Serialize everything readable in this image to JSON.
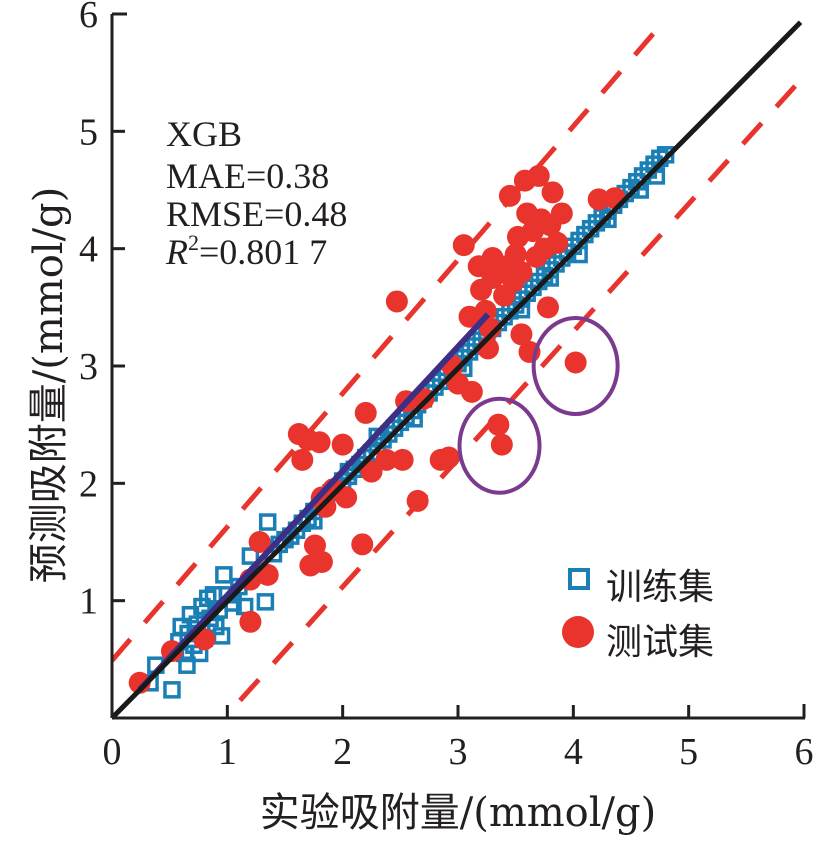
{
  "chart_data": {
    "type": "scatter",
    "title": "",
    "xlabel": "实验吸附量/(mmol/g)",
    "ylabel": "预测吸附量/(mmol/g)",
    "xlim": [
      0,
      6
    ],
    "ylim": [
      0,
      6
    ],
    "xticks": [
      0,
      1,
      2,
      3,
      4,
      5,
      6
    ],
    "yticks": [
      1,
      2,
      3,
      4,
      5,
      6
    ],
    "xtick_labels": [
      "0",
      "1",
      "2",
      "3",
      "4",
      "5",
      "6"
    ],
    "ytick_labels": [
      "1",
      "2",
      "3",
      "4",
      "5",
      "6"
    ],
    "grid": false,
    "legend_position": "bottom-right",
    "annotation": {
      "model": "XGB",
      "mae": "MAE=0.38",
      "rmse": "RMSE=0.48",
      "r2_symbol": "R",
      "r2_sup": "2",
      "r2_value": "=0.801 7"
    },
    "colors": {
      "train": "#1a7fb5",
      "test": "#e8342c",
      "identity_line": "#1a1a1a",
      "fit_line": "#3d2f86",
      "bound_lines": "#e8342c",
      "highlight_ellipse": "#7a3b8f",
      "axis": "#231f20"
    },
    "series": [
      {
        "name": "训练集",
        "marker": "square-open",
        "points": [
          [
            0.33,
            0.3
          ],
          [
            0.38,
            0.45
          ],
          [
            0.52,
            0.24
          ],
          [
            0.55,
            0.57
          ],
          [
            0.58,
            0.65
          ],
          [
            0.6,
            0.78
          ],
          [
            0.63,
            0.55
          ],
          [
            0.65,
            0.45
          ],
          [
            0.66,
            0.72
          ],
          [
            0.68,
            0.88
          ],
          [
            0.71,
            0.62
          ],
          [
            0.74,
            0.8
          ],
          [
            0.76,
            0.55
          ],
          [
            0.78,
            0.95
          ],
          [
            0.8,
            0.68
          ],
          [
            0.83,
            1.02
          ],
          [
            0.85,
            0.85
          ],
          [
            0.88,
            1.05
          ],
          [
            0.9,
            0.78
          ],
          [
            0.93,
            0.92
          ],
          [
            0.95,
            0.7
          ],
          [
            0.97,
            1.22
          ],
          [
            1.0,
            1.05
          ],
          [
            1.05,
            0.98
          ],
          [
            1.1,
            1.12
          ],
          [
            1.15,
            0.95
          ],
          [
            1.2,
            1.38
          ],
          [
            1.27,
            1.22
          ],
          [
            1.33,
            0.99
          ],
          [
            1.35,
            1.67
          ],
          [
            1.4,
            1.4
          ],
          [
            1.45,
            1.48
          ],
          [
            1.5,
            1.52
          ],
          [
            1.55,
            1.55
          ],
          [
            1.6,
            1.6
          ],
          [
            1.65,
            1.66
          ],
          [
            1.7,
            1.7
          ],
          [
            1.75,
            1.76
          ],
          [
            1.8,
            1.82
          ],
          [
            1.85,
            1.86
          ],
          [
            1.9,
            1.92
          ],
          [
            1.95,
            1.96
          ],
          [
            2.0,
            2.02
          ],
          [
            2.05,
            2.06
          ],
          [
            2.1,
            2.12
          ],
          [
            2.15,
            2.16
          ],
          [
            2.2,
            2.22
          ],
          [
            2.25,
            2.26
          ],
          [
            2.3,
            2.32
          ],
          [
            2.35,
            2.37
          ],
          [
            2.4,
            2.42
          ],
          [
            2.45,
            2.47
          ],
          [
            2.5,
            2.52
          ],
          [
            2.55,
            2.57
          ],
          [
            2.6,
            2.62
          ],
          [
            2.65,
            2.67
          ],
          [
            2.7,
            2.72
          ],
          [
            2.75,
            2.77
          ],
          [
            2.8,
            2.82
          ],
          [
            2.85,
            2.87
          ],
          [
            2.9,
            2.92
          ],
          [
            2.95,
            2.97
          ],
          [
            3.0,
            3.02
          ],
          [
            3.05,
            3.07
          ],
          [
            3.1,
            3.12
          ],
          [
            3.15,
            3.17
          ],
          [
            3.2,
            3.22
          ],
          [
            3.25,
            3.27
          ],
          [
            3.3,
            3.32
          ],
          [
            3.35,
            3.37
          ],
          [
            3.4,
            3.42
          ],
          [
            3.45,
            3.47
          ],
          [
            3.5,
            3.52
          ],
          [
            3.55,
            3.57
          ],
          [
            3.6,
            3.62
          ],
          [
            3.65,
            3.67
          ],
          [
            3.7,
            3.72
          ],
          [
            3.75,
            3.77
          ],
          [
            3.8,
            3.82
          ],
          [
            3.85,
            3.87
          ],
          [
            3.9,
            3.92
          ],
          [
            3.95,
            3.97
          ],
          [
            4.0,
            4.02
          ],
          [
            4.05,
            4.07
          ],
          [
            4.1,
            4.12
          ],
          [
            4.15,
            4.17
          ],
          [
            4.2,
            4.22
          ],
          [
            4.25,
            4.27
          ],
          [
            4.3,
            4.32
          ],
          [
            4.35,
            4.37
          ],
          [
            4.4,
            4.42
          ],
          [
            4.45,
            4.47
          ],
          [
            4.5,
            4.52
          ],
          [
            4.55,
            4.57
          ],
          [
            4.6,
            4.62
          ],
          [
            4.65,
            4.67
          ],
          [
            4.7,
            4.72
          ],
          [
            4.75,
            4.77
          ],
          [
            4.8,
            4.8
          ],
          [
            4.58,
            4.5
          ],
          [
            4.72,
            4.62
          ],
          [
            2.3,
            2.4
          ],
          [
            2.62,
            2.55
          ],
          [
            3.05,
            2.98
          ],
          [
            3.55,
            3.48
          ],
          [
            4.05,
            3.95
          ],
          [
            1.75,
            1.68
          ],
          [
            2.05,
            2.1
          ],
          [
            3.8,
            3.75
          ],
          [
            4.3,
            4.25
          ]
        ]
      },
      {
        "name": "测试集",
        "marker": "circle-filled",
        "points": [
          [
            0.24,
            0.3
          ],
          [
            0.52,
            0.57
          ],
          [
            0.8,
            0.67
          ],
          [
            1.2,
            0.82
          ],
          [
            1.2,
            1.18
          ],
          [
            1.28,
            1.5
          ],
          [
            1.35,
            1.22
          ],
          [
            1.62,
            2.42
          ],
          [
            1.7,
            2.37
          ],
          [
            1.65,
            2.2
          ],
          [
            1.8,
            2.35
          ],
          [
            1.72,
            1.3
          ],
          [
            1.76,
            1.47
          ],
          [
            1.82,
            1.33
          ],
          [
            1.82,
            1.88
          ],
          [
            1.85,
            1.8
          ],
          [
            1.92,
            1.95
          ],
          [
            2.0,
            2.33
          ],
          [
            2.03,
            1.88
          ],
          [
            2.17,
            1.48
          ],
          [
            2.2,
            2.6
          ],
          [
            2.25,
            2.1
          ],
          [
            2.38,
            2.2
          ],
          [
            2.47,
            3.55
          ],
          [
            2.52,
            2.2
          ],
          [
            2.55,
            2.7
          ],
          [
            2.65,
            1.85
          ],
          [
            2.7,
            2.72
          ],
          [
            2.85,
            2.2
          ],
          [
            2.92,
            2.22
          ],
          [
            2.95,
            3.0
          ],
          [
            3.0,
            2.85
          ],
          [
            3.05,
            4.03
          ],
          [
            3.1,
            3.42
          ],
          [
            3.12,
            2.78
          ],
          [
            3.18,
            3.85
          ],
          [
            3.2,
            3.65
          ],
          [
            3.24,
            3.47
          ],
          [
            3.26,
            3.15
          ],
          [
            3.28,
            3.32
          ],
          [
            3.3,
            3.75
          ],
          [
            3.3,
            3.92
          ],
          [
            3.35,
            2.5
          ],
          [
            3.38,
            2.33
          ],
          [
            3.4,
            3.6
          ],
          [
            3.42,
            3.85
          ],
          [
            3.45,
            4.45
          ],
          [
            3.48,
            3.72
          ],
          [
            3.5,
            3.95
          ],
          [
            3.52,
            4.1
          ],
          [
            3.55,
            3.8
          ],
          [
            3.55,
            3.27
          ],
          [
            3.58,
            4.58
          ],
          [
            3.6,
            4.3
          ],
          [
            3.62,
            3.12
          ],
          [
            3.65,
            4.15
          ],
          [
            3.68,
            3.93
          ],
          [
            3.7,
            4.62
          ],
          [
            3.72,
            4.25
          ],
          [
            3.75,
            4.0
          ],
          [
            3.78,
            3.5
          ],
          [
            3.8,
            4.2
          ],
          [
            3.82,
            4.48
          ],
          [
            3.86,
            4.05
          ],
          [
            3.9,
            4.3
          ],
          [
            4.02,
            3.03
          ],
          [
            4.22,
            4.42
          ],
          [
            4.36,
            4.43
          ]
        ]
      }
    ],
    "lines": [
      {
        "name": "identity",
        "style": "solid",
        "from": [
          0,
          0
        ],
        "to": [
          5.97,
          5.93
        ]
      },
      {
        "name": "fit",
        "style": "solid",
        "from": [
          0.24,
          0.24
        ],
        "to": [
          3.26,
          3.44
        ]
      },
      {
        "name": "upper-bound",
        "style": "dashed",
        "from": [
          0,
          0.49
        ],
        "to": [
          4.77,
          5.92
        ]
      },
      {
        "name": "lower-bound",
        "style": "dashed",
        "from": [
          1.11,
          0.15
        ],
        "to": [
          6.01,
          5.48
        ]
      }
    ],
    "highlights": [
      {
        "name": "outlier-ellipse-1",
        "center": [
          4.02,
          3.0
        ]
      },
      {
        "name": "outlier-ellipse-2",
        "center": [
          3.36,
          2.32
        ]
      }
    ],
    "legend": [
      {
        "label": "训练集",
        "marker": "square-open"
      },
      {
        "label": "测试集",
        "marker": "circle-filled"
      }
    ]
  }
}
